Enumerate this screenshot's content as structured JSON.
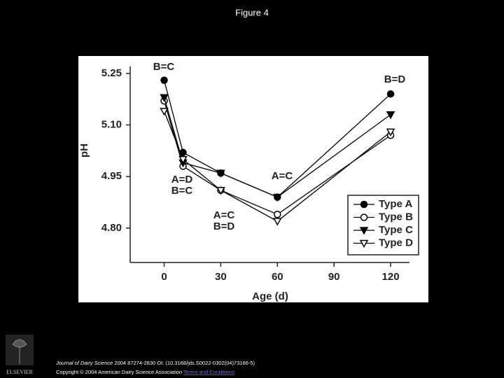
{
  "title": "Figure 4",
  "chart_data": {
    "type": "line",
    "x_label": "Age (d)",
    "y_label": "pH",
    "x": [
      0,
      10,
      30,
      60,
      120
    ],
    "series": [
      {
        "name": "Type A",
        "color": "#000000",
        "marker": "circle",
        "filled": true,
        "values": [
          5.23,
          5.02,
          4.96,
          4.89,
          5.19
        ]
      },
      {
        "name": "Type B",
        "color": "#000000",
        "marker": "circle",
        "filled": false,
        "values": [
          5.17,
          4.98,
          4.91,
          4.84,
          5.07
        ]
      },
      {
        "name": "Type C",
        "color": "#000000",
        "marker": "triangle-down",
        "filled": true,
        "values": [
          5.18,
          4.99,
          4.96,
          4.89,
          5.13
        ]
      },
      {
        "name": "Type D",
        "color": "#000000",
        "marker": "triangle-down",
        "filled": false,
        "values": [
          5.14,
          5.0,
          4.91,
          4.82,
          5.08
        ]
      }
    ],
    "xlim": [
      -18,
      130
    ],
    "xticks": [
      0,
      30,
      60,
      90,
      120
    ],
    "ylim": [
      4.7,
      5.27
    ],
    "yticks": [
      {
        "value": 4.8,
        "label": "4.80"
      },
      4.95,
      {
        "value": 5.1,
        "label": "5.10"
      },
      5.25
    ],
    "legend": "lower right",
    "annotations": [
      "B=C",
      "B=D",
      "A=D",
      "B=C",
      "A=C",
      "B=D",
      "A=C"
    ]
  },
  "footer": {
    "journal": "Journal of Dairy Science",
    "citation": "2004 87274-2830 OI: (10.3168/jds.S0022-0302(04)73166-5)",
    "copyright": "Copyright © 2004 American Dairy Science Association",
    "terms": "Terms and Conditions",
    "logo": "ELSEVIER"
  }
}
